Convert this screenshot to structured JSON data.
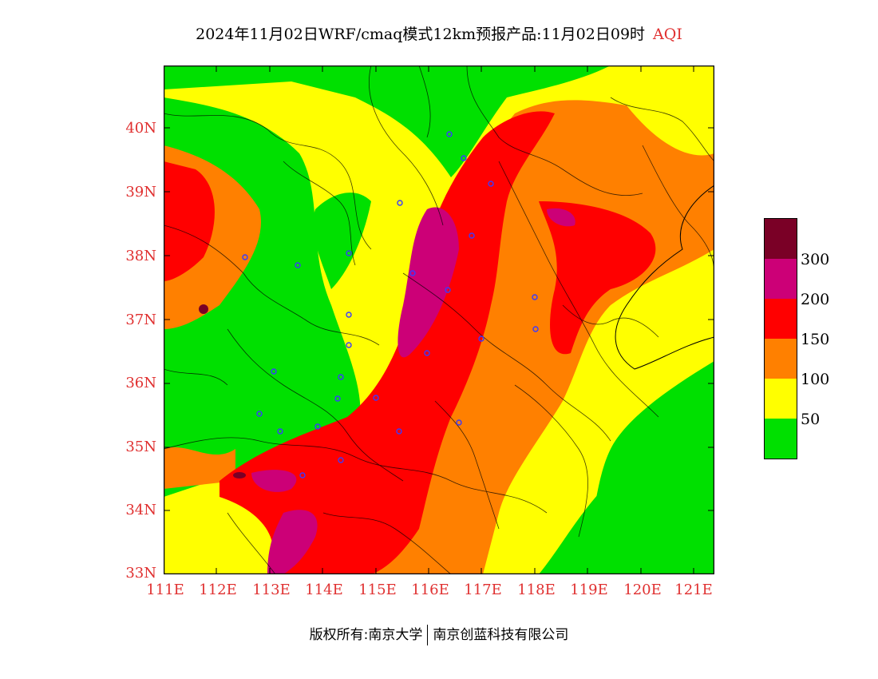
{
  "header": {
    "title": "2024年11月02日WRF/cmaq模式12km预报产品:11月02日09时",
    "product": "AQI"
  },
  "map": {
    "lat_labels": [
      "40N",
      "39N",
      "38N",
      "37N",
      "36N",
      "35N",
      "34N",
      "33N"
    ],
    "lon_labels": [
      "111E",
      "112E",
      "113E",
      "114E",
      "115E",
      "116E",
      "117E",
      "118E",
      "119E",
      "120E",
      "121E"
    ],
    "colors": {
      "c0_50": "#00e000",
      "c50_100": "#ffff00",
      "c100_150": "#ff8000",
      "c150_200": "#ff0000",
      "c200_300": "#cc0077",
      "c300_plus": "#7a0026"
    }
  },
  "legend": {
    "labels": [
      "300",
      "200",
      "150",
      "100",
      "50"
    ],
    "colors": [
      "#7a0026",
      "#cc0077",
      "#ff0000",
      "#ff8000",
      "#ffff00",
      "#00e000"
    ]
  },
  "footer": {
    "copyright": "版权所有:南京大学",
    "company": "南京创蓝科技有限公司"
  }
}
